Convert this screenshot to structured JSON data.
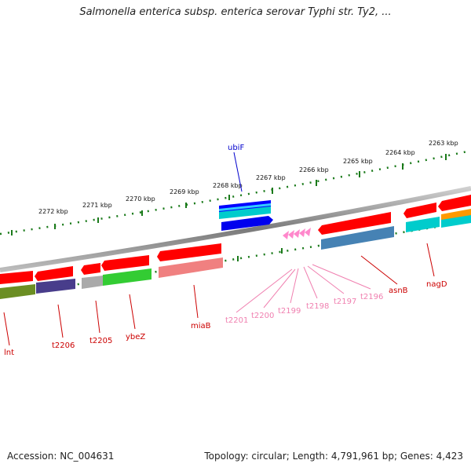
{
  "title": "Salmonella enterica subsp. enterica serovar Typhi str. Ty2, ...",
  "footer": {
    "accession": "Accession: NC_004631",
    "summary": "Topology: circular; Length: 4,791,961 bp; Genes: 4,423"
  },
  "axis": {
    "ticks": [
      "2272 kbp",
      "2271 kbp",
      "2270 kbp",
      "2269 kbp",
      "2268 kbp",
      "2267 kbp",
      "2266 kbp",
      "2265 kbp",
      "2264 kbp",
      "2263 kbp"
    ]
  },
  "genes": [
    {
      "label": "lnt",
      "color": "#cc0000"
    },
    {
      "label": "t2206",
      "color": "#cc0000"
    },
    {
      "label": "t2205",
      "color": "#cc0000"
    },
    {
      "label": "ybeZ",
      "color": "#cc0000"
    },
    {
      "label": "miaB",
      "color": "#cc0000"
    },
    {
      "label": "t2201",
      "color": "#f080b0"
    },
    {
      "label": "t2200",
      "color": "#f080b0"
    },
    {
      "label": "t2199",
      "color": "#f080b0"
    },
    {
      "label": "t2198",
      "color": "#f080b0"
    },
    {
      "label": "t2197",
      "color": "#f080b0"
    },
    {
      "label": "t2196",
      "color": "#f080b0"
    },
    {
      "label": "asnB",
      "color": "#cc0000"
    },
    {
      "label": "nagD",
      "color": "#cc0000"
    },
    {
      "label": "ubiF",
      "color": "#0000cc"
    }
  ],
  "colors": {
    "backbone": "#8a8a8a",
    "tick": "#1a7a1a",
    "feature_red": "#ff0000",
    "cog_olive": "#6b8e23",
    "cog_navy": "#483d8b",
    "cog_gray": "#aaaaaa",
    "cog_green": "#33cc33",
    "cog_salmon": "#f08080",
    "cog_steel": "#4682b4",
    "cog_cyan": "#00cccc",
    "cog_orange": "#ff9900",
    "feature_blue": "#0000ff",
    "feature_pink": "#ff88cc"
  }
}
